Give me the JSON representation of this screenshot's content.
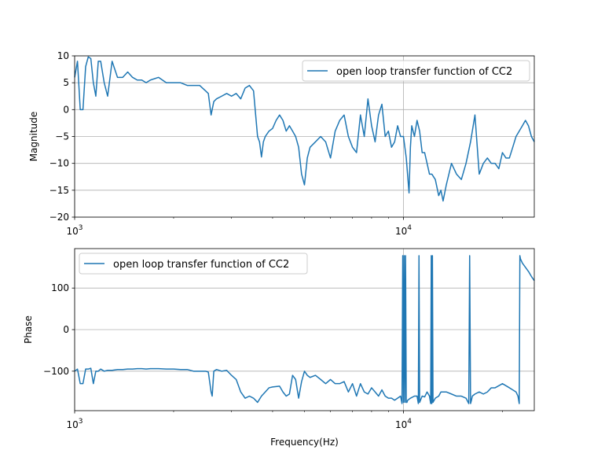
{
  "chart_data": [
    {
      "type": "line",
      "title": "",
      "xlabel": "",
      "ylabel": "Magnitude",
      "xscale": "log",
      "xlim": [
        1000,
        25000
      ],
      "ylim": [
        -20,
        10
      ],
      "yticks": [
        -20,
        -15,
        -10,
        -5,
        0,
        5,
        10
      ],
      "ytick_labels": [
        "−20",
        "−15",
        "−10",
        "−5",
        "0",
        "5",
        "10"
      ],
      "xticks": [
        {
          "value": 1000,
          "base": "10",
          "exp": "3"
        },
        {
          "value": 10000,
          "base": "10",
          "exp": "4"
        }
      ],
      "grid": true,
      "legend": "top-right",
      "color": "#1f77b4",
      "series": [
        {
          "name": "open loop transfer function of CC2",
          "x": [
            1000,
            1020,
            1040,
            1060,
            1080,
            1100,
            1120,
            1140,
            1160,
            1180,
            1200,
            1230,
            1260,
            1300,
            1350,
            1400,
            1450,
            1500,
            1550,
            1600,
            1650,
            1700,
            1800,
            1900,
            2000,
            2100,
            2200,
            2300,
            2400,
            2500,
            2550,
            2600,
            2650,
            2700,
            2800,
            2900,
            3000,
            3100,
            3200,
            3300,
            3400,
            3500,
            3600,
            3650,
            3700,
            3750,
            3800,
            3900,
            4000,
            4100,
            4200,
            4300,
            4400,
            4500,
            4600,
            4700,
            4800,
            4900,
            5000,
            5100,
            5200,
            5400,
            5600,
            5800,
            6000,
            6200,
            6400,
            6600,
            6800,
            7000,
            7200,
            7400,
            7600,
            7800,
            8000,
            8200,
            8400,
            8600,
            8800,
            9000,
            9200,
            9400,
            9600,
            9800,
            10000,
            10200,
            10400,
            10500,
            10600,
            10800,
            11000,
            11200,
            11400,
            11600,
            11800,
            12000,
            12200,
            12500,
            12800,
            13000,
            13200,
            13500,
            14000,
            14500,
            15000,
            15500,
            16000,
            16500,
            17000,
            17500,
            18000,
            18500,
            19000,
            19500,
            20000,
            20500,
            21000,
            21500,
            22000,
            22500,
            23000,
            23500,
            24000,
            24500,
            25000
          ],
          "y": [
            6,
            9,
            0,
            0,
            8,
            9.8,
            9.5,
            5,
            2.5,
            9,
            9,
            5,
            2.5,
            9,
            6,
            6,
            7,
            6,
            5.5,
            5.5,
            5,
            5.5,
            6,
            5,
            5,
            5,
            4.5,
            4.5,
            4.5,
            3.5,
            3,
            -1,
            1.5,
            2,
            2.5,
            3,
            2.5,
            3,
            2,
            4,
            4.5,
            3.5,
            -5,
            -6,
            -8.8,
            -6,
            -5,
            -4,
            -3.5,
            -2,
            -1,
            -2,
            -4,
            -3,
            -4,
            -5,
            -7,
            -12,
            -14,
            -9,
            -7,
            -6,
            -5,
            -6,
            -9,
            -4,
            -2,
            -1,
            -5,
            -7,
            -8,
            -1,
            -5,
            2,
            -3,
            -6,
            -1,
            1,
            -5,
            -4,
            -7,
            -6,
            -3,
            -5,
            -5,
            -9,
            -15.5,
            -7,
            -3,
            -5,
            -2,
            -4,
            -8,
            -8,
            -10,
            -12,
            -12,
            -13,
            -16,
            -15,
            -17,
            -14,
            -10,
            -12,
            -13,
            -10,
            -6,
            -1,
            -12,
            -10,
            -9,
            -10,
            -10,
            -11,
            -8,
            -9,
            -9,
            -7,
            -5,
            -4,
            -3,
            -2,
            -3,
            -5,
            -6
          ]
        }
      ]
    },
    {
      "type": "line",
      "title": "",
      "xlabel": "Frequency(Hz)",
      "ylabel": "Phase",
      "xscale": "log",
      "xlim": [
        1000,
        25000
      ],
      "ylim": [
        -195,
        195
      ],
      "yticks": [
        -100,
        0,
        100
      ],
      "ytick_labels": [
        "−100",
        "0",
        "100"
      ],
      "xticks": [
        {
          "value": 1000,
          "base": "10",
          "exp": "3"
        },
        {
          "value": 10000,
          "base": "10",
          "exp": "4"
        }
      ],
      "grid": true,
      "legend": "top-left",
      "color": "#1f77b4",
      "series": [
        {
          "name": "open loop transfer function of CC2",
          "x": [
            1000,
            1020,
            1040,
            1060,
            1080,
            1100,
            1120,
            1140,
            1160,
            1180,
            1200,
            1230,
            1260,
            1300,
            1350,
            1400,
            1450,
            1500,
            1550,
            1600,
            1650,
            1700,
            1800,
            1900,
            2000,
            2100,
            2200,
            2300,
            2400,
            2500,
            2550,
            2600,
            2620,
            2650,
            2700,
            2800,
            2900,
            3000,
            3100,
            3200,
            3300,
            3400,
            3500,
            3600,
            3700,
            3800,
            3900,
            4000,
            4100,
            4200,
            4300,
            4400,
            4500,
            4600,
            4700,
            4800,
            4900,
            5000,
            5100,
            5200,
            5400,
            5600,
            5800,
            6000,
            6200,
            6400,
            6600,
            6800,
            7000,
            7200,
            7400,
            7600,
            7800,
            8000,
            8200,
            8400,
            8600,
            8800,
            9000,
            9200,
            9400,
            9600,
            9800,
            9900,
            9950,
            10000,
            10050,
            10100,
            10150,
            10200,
            10250,
            10300,
            10500,
            10800,
            11000,
            11100,
            11150,
            11200,
            11400,
            11600,
            11800,
            12000,
            12100,
            12150,
            12200,
            12250,
            12300,
            12500,
            12800,
            13000,
            13500,
            14000,
            14500,
            15000,
            15500,
            15800,
            15900,
            16000,
            16100,
            16200,
            16500,
            17000,
            17500,
            18000,
            18500,
            19000,
            19500,
            20000,
            20500,
            21000,
            21500,
            22000,
            22300,
            22500,
            22600,
            22700,
            23000,
            23500,
            24000,
            24500,
            25000
          ],
          "y": [
            -100,
            -95,
            -130,
            -130,
            -95,
            -95,
            -93,
            -130,
            -100,
            -100,
            -95,
            -100,
            -98,
            -98,
            -96,
            -96,
            -95,
            -95,
            -94,
            -94,
            -95,
            -94,
            -94,
            -95,
            -95,
            -96,
            -96,
            -100,
            -100,
            -100,
            -102,
            -150,
            -160,
            -100,
            -96,
            -100,
            -98,
            -110,
            -120,
            -150,
            -165,
            -160,
            -165,
            -175,
            -160,
            -150,
            -140,
            -138,
            -137,
            -136,
            -150,
            -160,
            -155,
            -110,
            -120,
            -165,
            -125,
            -100,
            -110,
            -115,
            -110,
            -120,
            -130,
            -120,
            -130,
            -130,
            -125,
            -150,
            -130,
            -160,
            -130,
            -150,
            -155,
            -140,
            -150,
            -160,
            -145,
            -160,
            -165,
            -165,
            -170,
            -165,
            -160,
            -178,
            178,
            -175,
            178,
            -175,
            178,
            -175,
            -175,
            -170,
            -165,
            -160,
            -160,
            -178,
            178,
            -175,
            -160,
            -162,
            -150,
            -160,
            -178,
            178,
            -178,
            178,
            -175,
            -165,
            -160,
            -150,
            -150,
            -155,
            -160,
            -160,
            -165,
            -178,
            178,
            -178,
            -170,
            -160,
            -155,
            -150,
            -155,
            -150,
            -140,
            -140,
            -135,
            -130,
            -135,
            -140,
            -145,
            -150,
            -160,
            -178,
            178,
            170,
            160,
            150,
            140,
            128,
            118
          ]
        }
      ]
    }
  ]
}
